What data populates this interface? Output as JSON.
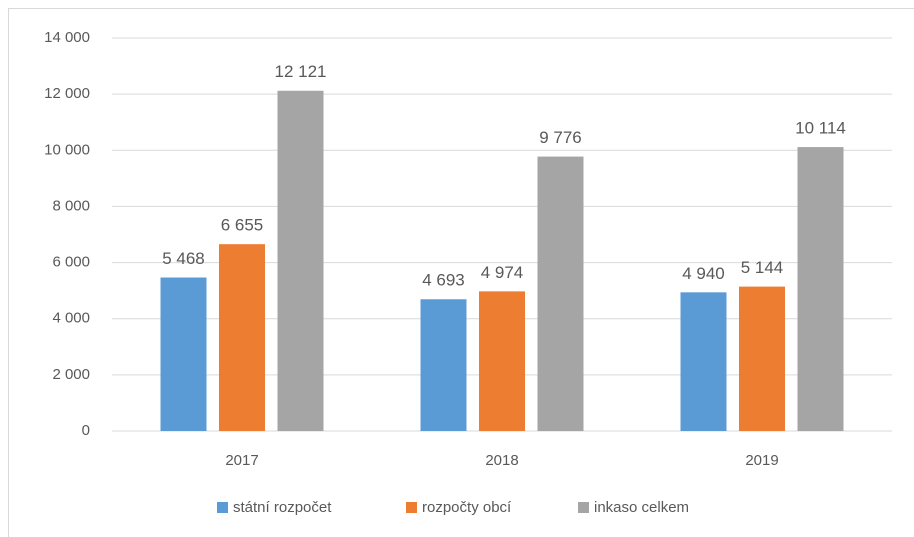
{
  "chart_data": {
    "type": "bar",
    "categories": [
      "2017",
      "2018",
      "2019"
    ],
    "series": [
      {
        "name": "státní rozpočet",
        "color": "#5b9bd5",
        "values": [
          5468,
          4693,
          4940
        ],
        "value_labels": [
          "5 468",
          "4 693",
          "4 940"
        ]
      },
      {
        "name": "rozpočty obcí",
        "color": "#ed7d31",
        "values": [
          6655,
          4974,
          5144
        ],
        "value_labels": [
          "6 655",
          "4 974",
          "5 144"
        ]
      },
      {
        "name": "inkaso celkem",
        "color": "#a5a5a5",
        "values": [
          12121,
          9776,
          10114
        ],
        "value_labels": [
          "12 121",
          "9 776",
          "10 114"
        ]
      }
    ],
    "ylim": [
      0,
      14000
    ],
    "yticks": [
      0,
      {
        "value": 2000,
        "label": "2 000"
      },
      {
        "value": 4000,
        "label": "4 000"
      },
      {
        "value": 6000,
        "label": "6 000"
      },
      {
        "value": 8000,
        "label": "8 000"
      },
      {
        "value": 10000,
        "label": "10 000"
      },
      {
        "value": 12000,
        "label": "12 000"
      },
      {
        "value": 14000,
        "label": "14 000"
      }
    ],
    "grid": true,
    "legend": "bottom"
  }
}
